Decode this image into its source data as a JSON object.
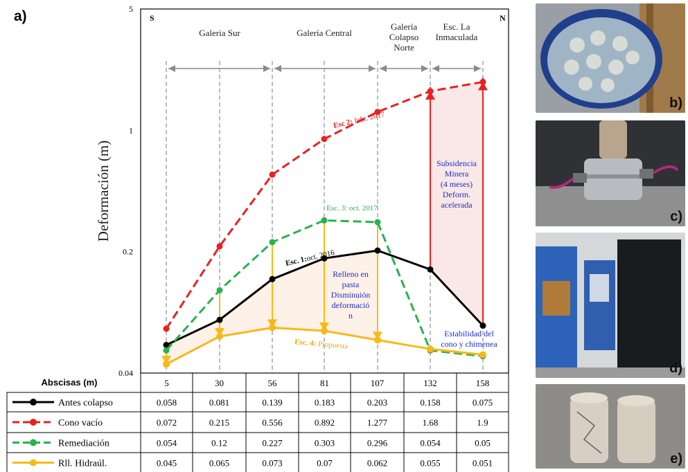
{
  "panel_label": "a)",
  "chart_data": {
    "type": "line",
    "ylabel": "Deformación (m)",
    "xlabel": "Abscisas (m)",
    "y_scale": "log",
    "ylim": [
      0.04,
      5
    ],
    "y_ticks": [
      "5",
      "1",
      "0.2",
      "0.04"
    ],
    "categories": [
      "5",
      "30",
      "56",
      "81",
      "107",
      "132",
      "158"
    ],
    "corner_labels": {
      "left": "S",
      "right": "N"
    },
    "sections": [
      "Galeria Sur",
      "Galería Central",
      "Galería Colapso Norte",
      "Esc. La Inmaculada"
    ],
    "series": [
      {
        "name": "Antes colapso",
        "color": "#000000",
        "dash": false,
        "values": [
          0.058,
          0.081,
          0.139,
          0.183,
          0.203,
          0.158,
          0.075
        ]
      },
      {
        "name": "Cono vacío",
        "color": "#e8201f",
        "dash": true,
        "values": [
          0.072,
          0.215,
          0.556,
          0.892,
          1.277,
          1.68,
          1.9
        ]
      },
      {
        "name": "Remediación",
        "color": "#27b24a",
        "dash": true,
        "values": [
          0.054,
          0.12,
          0.227,
          0.303,
          0.296,
          0.054,
          0.05
        ]
      },
      {
        "name": "Rll. Hidraúl.",
        "color": "#f7b916",
        "dash": false,
        "values": [
          0.045,
          0.065,
          0.073,
          0.07,
          0.062,
          0.055,
          0.051
        ]
      }
    ],
    "series_display": [
      [
        "0.058",
        "0.081",
        "0.139",
        "0.183",
        "0.203",
        "0.158",
        "0.075"
      ],
      [
        "0.072",
        "0.215",
        "0.556",
        "0.892",
        "1.277",
        "1.68",
        "1.9"
      ],
      [
        "0.054",
        "0.12",
        "0.227",
        "0.303",
        "0.296",
        "0.054",
        "0.05"
      ],
      [
        "0.045",
        "0.065",
        "0.073",
        "0.07",
        "0.062",
        "0.055",
        "0.051"
      ]
    ],
    "annotations": {
      "esc1_prefix": "Esc. 1:",
      "esc1_rest": "oct. 2016",
      "esc2_prefix": "Esc 2:",
      "esc2_rest": " febr. 2017",
      "esc3": "Esc. 3: oct. 2017",
      "esc4_prefix": "Esc. 4:",
      "esc4_rest": " Propuesta",
      "relleno": [
        "Relleno en",
        "pasta",
        "Disminuión",
        "deformació",
        "n"
      ],
      "subsidencia": [
        "Subsidencia",
        "Minera",
        "(4 meses)",
        "Deform.",
        "acelerada"
      ],
      "estabilidad": [
        "Estabilidad del",
        "cono y chimenea"
      ]
    }
  },
  "photos": [
    {
      "tag": "b)",
      "icon": "sample-container-photo"
    },
    {
      "tag": "c)",
      "icon": "triaxial-cell-photo"
    },
    {
      "tag": "d)",
      "icon": "testing-machine-photo"
    },
    {
      "tag": "e)",
      "icon": "rock-cores-photo"
    }
  ]
}
